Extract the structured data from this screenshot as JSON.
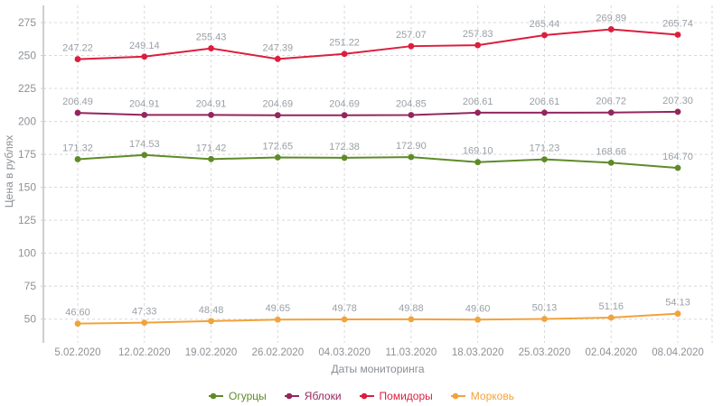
{
  "chart_data": {
    "type": "line",
    "title": "",
    "xlabel": "Даты мониторинга",
    "ylabel": "Цена в рублях",
    "categories": [
      "5.02.2020",
      "12.02.2020",
      "19.02.2020",
      "26.02.2020",
      "04.03.2020",
      "11.03.2020",
      "18.03.2020",
      "25.03.2020",
      "02.04.2020",
      "08.04.2020"
    ],
    "y_ticks": [
      50,
      75,
      100,
      125,
      150,
      175,
      200,
      225,
      250,
      275
    ],
    "ylim": [
      32,
      288
    ],
    "grid": true,
    "legend_position": "bottom",
    "series": [
      {
        "key": "cucumbers",
        "name": "Огурцы",
        "color": "#5e8b28",
        "values": [
          171.32,
          174.53,
          171.42,
          172.65,
          172.38,
          172.9,
          169.1,
          171.23,
          168.66,
          164.7
        ]
      },
      {
        "key": "apples",
        "name": "Яблоки",
        "color": "#93265e",
        "values": [
          206.49,
          204.91,
          204.91,
          204.69,
          204.69,
          204.85,
          206.61,
          206.61,
          206.72,
          207.3
        ]
      },
      {
        "key": "tomatoes",
        "name": "Помидоры",
        "color": "#dc1e3d",
        "values": [
          247.22,
          249.14,
          255.43,
          247.39,
          251.22,
          257.07,
          257.83,
          265.44,
          269.89,
          265.74
        ]
      },
      {
        "key": "carrots",
        "name": "Морковь",
        "color": "#f1a33c",
        "values": [
          46.6,
          47.33,
          48.48,
          49.65,
          49.78,
          49.88,
          49.6,
          50.13,
          51.16,
          54.13
        ]
      }
    ]
  },
  "colors": {
    "background": "#ffffff",
    "grid": "#d8d8d8",
    "axis": "#cfcfcf",
    "tick_label": "#8d9196",
    "data_label": "#9aa0a6",
    "axis_title": "#8a8e93"
  }
}
